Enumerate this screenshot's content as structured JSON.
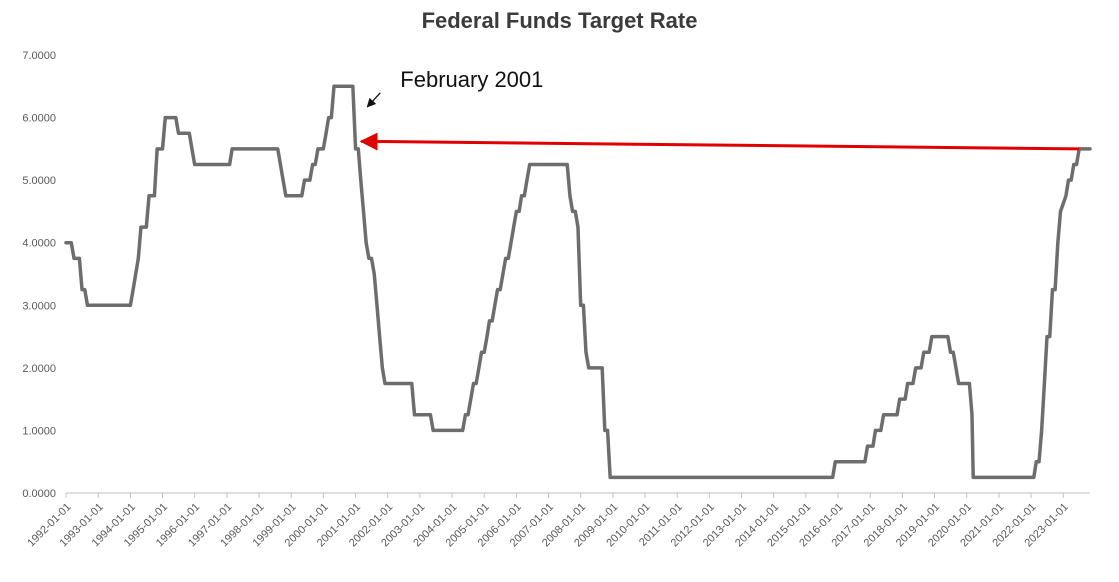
{
  "chart_data": {
    "type": "line",
    "title": "Federal Funds Target Rate",
    "xlabel": "",
    "ylabel": "",
    "ylim": [
      0,
      7
    ],
    "y_ticks": [
      "0.0000",
      "1.0000",
      "2.0000",
      "3.0000",
      "4.0000",
      "5.0000",
      "6.0000",
      "7.0000"
    ],
    "x_ticks": [
      "1992-01-01",
      "1993-01-01",
      "1994-01-01",
      "1995-01-01",
      "1996-01-01",
      "1997-01-01",
      "1998-01-01",
      "1999-01-01",
      "2000-01-01",
      "2001-01-01",
      "2002-01-01",
      "2003-01-01",
      "2004-01-01",
      "2005-01-01",
      "2006-01-01",
      "2007-01-01",
      "2008-01-01",
      "2009-01-01",
      "2010-01-01",
      "2011-01-01",
      "2012-01-01",
      "2013-01-01",
      "2014-01-01",
      "2015-01-01",
      "2016-01-01",
      "2017-01-01",
      "2018-01-01",
      "2019-01-01",
      "2020-01-01",
      "2021-01-01",
      "2022-01-01",
      "2023-01-01"
    ],
    "xlim": [
      "1992-01-01",
      "2023-11-01"
    ],
    "grid": false,
    "line_color": "#6e6c6d",
    "series": [
      {
        "points": [
          [
            "1992-01-01",
            4.0
          ],
          [
            "1992-03-01",
            4.0
          ],
          [
            "1992-04-01",
            3.75
          ],
          [
            "1992-06-01",
            3.75
          ],
          [
            "1992-07-01",
            3.25
          ],
          [
            "1992-08-01",
            3.25
          ],
          [
            "1992-09-01",
            3.0
          ],
          [
            "1994-01-01",
            3.0
          ],
          [
            "1994-02-01",
            3.25
          ],
          [
            "1994-04-01",
            3.75
          ],
          [
            "1994-05-01",
            4.25
          ],
          [
            "1994-07-01",
            4.25
          ],
          [
            "1994-08-01",
            4.75
          ],
          [
            "1994-10-01",
            4.75
          ],
          [
            "1994-11-01",
            5.5
          ],
          [
            "1995-01-01",
            5.5
          ],
          [
            "1995-02-01",
            6.0
          ],
          [
            "1995-06-01",
            6.0
          ],
          [
            "1995-07-01",
            5.75
          ],
          [
            "1995-11-01",
            5.75
          ],
          [
            "1995-12-01",
            5.5
          ],
          [
            "1996-01-01",
            5.25
          ],
          [
            "1997-02-01",
            5.25
          ],
          [
            "1997-03-01",
            5.5
          ],
          [
            "1998-08-01",
            5.5
          ],
          [
            "1998-09-01",
            5.25
          ],
          [
            "1998-10-01",
            5.0
          ],
          [
            "1998-11-01",
            4.75
          ],
          [
            "1999-05-01",
            4.75
          ],
          [
            "1999-06-01",
            5.0
          ],
          [
            "1999-08-01",
            5.0
          ],
          [
            "1999-09-01",
            5.25
          ],
          [
            "1999-10-01",
            5.25
          ],
          [
            "1999-11-01",
            5.5
          ],
          [
            "2000-01-01",
            5.5
          ],
          [
            "2000-02-01",
            5.75
          ],
          [
            "2000-03-01",
            6.0
          ],
          [
            "2000-04-01",
            6.0
          ],
          [
            "2000-05-01",
            6.5
          ],
          [
            "2000-12-01",
            6.5
          ],
          [
            "2001-01-01",
            5.5
          ],
          [
            "2001-02-01",
            5.5
          ],
          [
            "2001-03-01",
            5.0
          ],
          [
            "2001-04-01",
            4.5
          ],
          [
            "2001-05-01",
            4.0
          ],
          [
            "2001-06-01",
            3.75
          ],
          [
            "2001-07-01",
            3.75
          ],
          [
            "2001-08-01",
            3.5
          ],
          [
            "2001-09-01",
            3.0
          ],
          [
            "2001-10-01",
            2.5
          ],
          [
            "2001-11-01",
            2.0
          ],
          [
            "2001-12-01",
            1.75
          ],
          [
            "2002-10-01",
            1.75
          ],
          [
            "2002-11-01",
            1.25
          ],
          [
            "2003-05-01",
            1.25
          ],
          [
            "2003-06-01",
            1.0
          ],
          [
            "2004-05-01",
            1.0
          ],
          [
            "2004-06-01",
            1.25
          ],
          [
            "2004-07-01",
            1.25
          ],
          [
            "2004-08-01",
            1.5
          ],
          [
            "2004-09-01",
            1.75
          ],
          [
            "2004-10-01",
            1.75
          ],
          [
            "2004-11-01",
            2.0
          ],
          [
            "2004-12-01",
            2.25
          ],
          [
            "2005-01-01",
            2.25
          ],
          [
            "2005-02-01",
            2.5
          ],
          [
            "2005-03-01",
            2.75
          ],
          [
            "2005-04-01",
            2.75
          ],
          [
            "2005-05-01",
            3.0
          ],
          [
            "2005-06-01",
            3.25
          ],
          [
            "2005-07-01",
            3.25
          ],
          [
            "2005-08-01",
            3.5
          ],
          [
            "2005-09-01",
            3.75
          ],
          [
            "2005-10-01",
            3.75
          ],
          [
            "2005-11-01",
            4.0
          ],
          [
            "2005-12-01",
            4.25
          ],
          [
            "2006-01-01",
            4.5
          ],
          [
            "2006-02-01",
            4.5
          ],
          [
            "2006-03-01",
            4.75
          ],
          [
            "2006-04-01",
            4.75
          ],
          [
            "2006-05-01",
            5.0
          ],
          [
            "2006-06-01",
            5.25
          ],
          [
            "2007-08-01",
            5.25
          ],
          [
            "2007-09-01",
            4.75
          ],
          [
            "2007-10-01",
            4.5
          ],
          [
            "2007-11-01",
            4.5
          ],
          [
            "2007-12-01",
            4.25
          ],
          [
            "2008-01-01",
            3.0
          ],
          [
            "2008-02-01",
            3.0
          ],
          [
            "2008-03-01",
            2.25
          ],
          [
            "2008-04-01",
            2.0
          ],
          [
            "2008-09-01",
            2.0
          ],
          [
            "2008-10-01",
            1.0
          ],
          [
            "2008-11-01",
            1.0
          ],
          [
            "2008-12-01",
            0.25
          ],
          [
            "2015-11-01",
            0.25
          ],
          [
            "2015-12-01",
            0.5
          ],
          [
            "2016-11-01",
            0.5
          ],
          [
            "2016-12-01",
            0.75
          ],
          [
            "2017-02-01",
            0.75
          ],
          [
            "2017-03-01",
            1.0
          ],
          [
            "2017-05-01",
            1.0
          ],
          [
            "2017-06-01",
            1.25
          ],
          [
            "2017-11-01",
            1.25
          ],
          [
            "2017-12-01",
            1.5
          ],
          [
            "2018-02-01",
            1.5
          ],
          [
            "2018-03-01",
            1.75
          ],
          [
            "2018-05-01",
            1.75
          ],
          [
            "2018-06-01",
            2.0
          ],
          [
            "2018-08-01",
            2.0
          ],
          [
            "2018-09-01",
            2.25
          ],
          [
            "2018-11-01",
            2.25
          ],
          [
            "2018-12-01",
            2.5
          ],
          [
            "2019-06-01",
            2.5
          ],
          [
            "2019-07-01",
            2.25
          ],
          [
            "2019-08-01",
            2.25
          ],
          [
            "2019-09-01",
            2.0
          ],
          [
            "2019-10-01",
            1.75
          ],
          [
            "2020-02-01",
            1.75
          ],
          [
            "2020-03-01",
            1.25
          ],
          [
            "2020-03-15",
            0.25
          ],
          [
            "2022-02-01",
            0.25
          ],
          [
            "2022-03-01",
            0.5
          ],
          [
            "2022-04-01",
            0.5
          ],
          [
            "2022-05-01",
            1.0
          ],
          [
            "2022-06-01",
            1.75
          ],
          [
            "2022-07-01",
            2.5
          ],
          [
            "2022-08-01",
            2.5
          ],
          [
            "2022-09-01",
            3.25
          ],
          [
            "2022-10-01",
            3.25
          ],
          [
            "2022-11-01",
            4.0
          ],
          [
            "2022-12-01",
            4.5
          ],
          [
            "2023-02-01",
            4.75
          ],
          [
            "2023-03-01",
            5.0
          ],
          [
            "2023-04-01",
            5.0
          ],
          [
            "2023-05-01",
            5.25
          ],
          [
            "2023-06-01",
            5.25
          ],
          [
            "2023-07-01",
            5.5
          ],
          [
            "2023-11-01",
            5.5
          ]
        ]
      }
    ],
    "annotations": [
      {
        "text": "February 2001",
        "black_arrow_points_to": [
          "2001-02-01",
          5.5
        ],
        "color": "#111111"
      },
      {
        "red_arrow_from": [
          "2023-07-01",
          5.5
        ],
        "red_arrow_to": [
          "2001-02-01",
          5.62
        ],
        "color": "#e00000"
      }
    ]
  }
}
